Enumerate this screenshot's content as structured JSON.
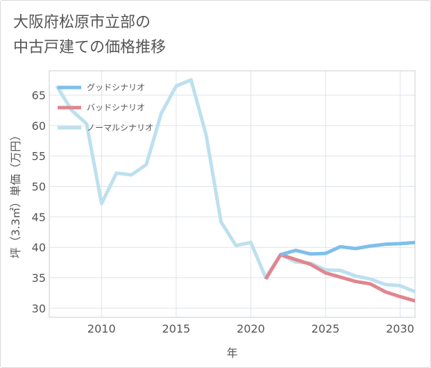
{
  "title": {
    "line1": "大阪府松原市立部の",
    "line2": "中古戸建ての価格推移"
  },
  "chart_data": {
    "type": "line",
    "xlabel": "年",
    "ylabel": "坪（3.3㎡）単価（万円）",
    "xlim": [
      2006.5,
      2031
    ],
    "ylim": [
      28.5,
      69
    ],
    "x_ticks": [
      2010,
      2015,
      2020,
      2025,
      2030
    ],
    "y_ticks": [
      30,
      35,
      40,
      45,
      50,
      55,
      60,
      65
    ],
    "legend_position": "top-left",
    "series": [
      {
        "name": "グッドシナリオ",
        "color": "#7fbfea",
        "x": [
          2022,
          2023,
          2024,
          2025,
          2026,
          2027,
          2028,
          2029,
          2030,
          2031
        ],
        "values": [
          38.8,
          39.5,
          38.9,
          39.0,
          40.1,
          39.8,
          40.2,
          40.5,
          40.6,
          40.8
        ]
      },
      {
        "name": "バッドシナリオ",
        "color": "#e0868e",
        "x": [
          2021,
          2022,
          2023,
          2024,
          2025,
          2026,
          2027,
          2028,
          2029,
          2030,
          2031
        ],
        "values": [
          34.8,
          38.8,
          38.0,
          37.2,
          35.8,
          35.1,
          34.4,
          34.0,
          32.7,
          31.9,
          31.2
        ]
      },
      {
        "name": "ノーマルシナリオ",
        "color": "#bde0ee",
        "x": [
          2007,
          2008,
          2009,
          2010,
          2011,
          2012,
          2013,
          2014,
          2015,
          2016,
          2017,
          2018,
          2019,
          2020,
          2021,
          2022,
          2023,
          2024,
          2025,
          2026,
          2027,
          2028,
          2029,
          2030,
          2031
        ],
        "values": [
          66.5,
          62.5,
          60.3,
          47.2,
          52.2,
          51.9,
          53.6,
          62.0,
          66.5,
          67.5,
          58.5,
          44.2,
          40.3,
          40.8,
          35.0,
          38.8,
          37.6,
          37.4,
          36.3,
          36.2,
          35.3,
          34.8,
          33.9,
          33.7,
          32.7
        ]
      }
    ]
  }
}
